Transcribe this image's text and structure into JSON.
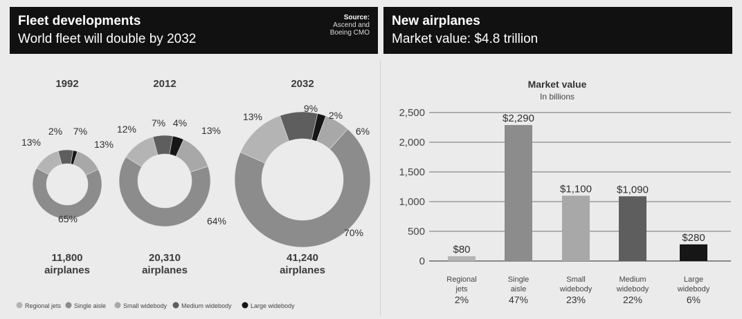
{
  "left_header": {
    "title": "Fleet developments",
    "subtitle": "World fleet will double by 2032",
    "source_label": "Source:",
    "source_line1": "Ascend and",
    "source_line2": "Boeing CMO"
  },
  "right_header": {
    "title": "New airplanes",
    "subtitle": "Market value: $4.8 trillion"
  },
  "colors": {
    "regional": "#b4b4b4",
    "single_aisle": "#8c8c8c",
    "small_widebody": "#a8a8a8",
    "medium_widebody": "#5e5e5e",
    "large_widebody": "#161616"
  },
  "chart_data": [
    {
      "type": "pie",
      "subtype": "donut",
      "title": "",
      "categories": [
        "Regional jets",
        "Single aisle",
        "Small widebody",
        "Medium widebody",
        "Large widebody"
      ],
      "legend_placement": "bottom",
      "donuts": [
        {
          "year": "1992",
          "count_line1": "11,800",
          "count_line2": "airplanes",
          "values": [
            13,
            65,
            13,
            7,
            2
          ],
          "labels": [
            "13%",
            "65%",
            "13%",
            "7%",
            "2%"
          ]
        },
        {
          "year": "2012",
          "count_line1": "20,310",
          "count_line2": "airplanes",
          "values": [
            12,
            64,
            13,
            7,
            4
          ],
          "labels": [
            "12%",
            "64%",
            "13%",
            "7%",
            "4%"
          ]
        },
        {
          "year": "2032",
          "count_line1": "41,240",
          "count_line2": "airplanes",
          "values": [
            13,
            70,
            6,
            9,
            2
          ],
          "labels": [
            "13%",
            "70%",
            "6%",
            "9%",
            "2%"
          ]
        }
      ]
    },
    {
      "type": "bar",
      "title": "Market value",
      "subtitle": "In billions",
      "ylim": [
        0,
        2500
      ],
      "yticks": [
        "0",
        "500",
        "1,000",
        "1,500",
        "2,000",
        "2,500"
      ],
      "ytick_values": [
        0,
        500,
        1000,
        1500,
        2000,
        2500
      ],
      "grid": true,
      "categories": [
        {
          "line1": "Regional",
          "line2": "jets",
          "pct": "2%"
        },
        {
          "line1": "Single",
          "line2": "aisle",
          "pct": "47%"
        },
        {
          "line1": "Small",
          "line2": "widebody",
          "pct": "23%"
        },
        {
          "line1": "Medium",
          "line2": "widebody",
          "pct": "22%"
        },
        {
          "line1": "Large",
          "line2": "widebody",
          "pct": "6%"
        }
      ],
      "values": [
        80,
        2290,
        1100,
        1090,
        280
      ],
      "value_labels": [
        "$80",
        "$2,290",
        "$1,100",
        "$1,090",
        "$280"
      ]
    }
  ]
}
